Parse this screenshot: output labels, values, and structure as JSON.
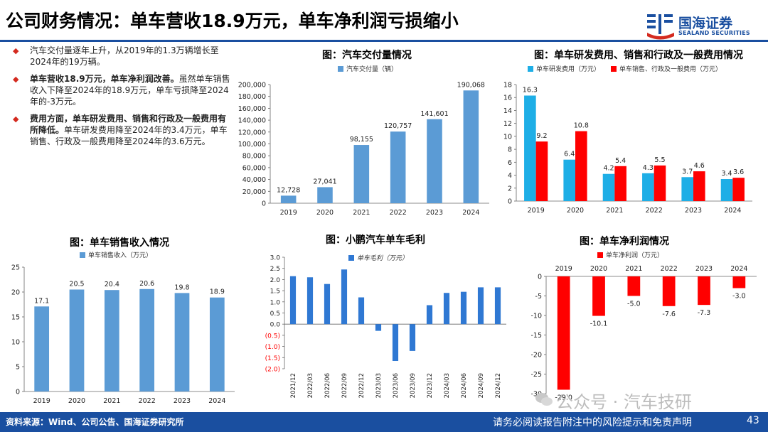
{
  "header": {
    "title": "公司财务情况：单车营收18.9万元，单车净利润亏损缩小",
    "logo_name": "国海证券",
    "logo_en": "SEALAND SECURITIES"
  },
  "bullets": [
    {
      "bold": "",
      "text": "汽车交付量逐年上升，从2019年的1.3万辆增长至2024年的19万辆。"
    },
    {
      "bold": "单车营收18.9万元，单车净利润改善。",
      "text": "虽然单车销售收入下降至2024年的18.9万元，单车亏损降至2024年的-3万元。"
    },
    {
      "bold": "费用方面，单车研发费用、销售和行政及一般费用有所降低。",
      "text": "单车研发费用降至2024年的3.4万元，单车销售、行政及一般费用降至2024年的3.6万元。"
    }
  ],
  "footer": {
    "source": "资料来源：Wind、公司公告、国海证券研究所",
    "disclaimer": "请务必阅读报告附注中的风险提示和免责声明",
    "page": "43"
  },
  "watermark": "公众号 · 汽车技研",
  "colors": {
    "brand": "#1a4fa0",
    "bar_blue": "#5b9bd5",
    "bar_cyan": "#1eaee6",
    "bar_red": "#ff0000",
    "bullet": "#d42a1f"
  },
  "chart_data": [
    {
      "id": "deliveries",
      "type": "bar",
      "title": "图：汽车交付量情况",
      "categories": [
        "2019",
        "2020",
        "2021",
        "2022",
        "2023",
        "2024"
      ],
      "series": [
        {
          "name": "汽车交付量（辆）",
          "values": [
            12728,
            27041,
            98155,
            120757,
            141601,
            190068
          ],
          "labels": [
            "12,728",
            "27,041",
            "98,155",
            "120,757",
            "141,601",
            "190,068"
          ]
        }
      ],
      "ylim": [
        0,
        200000
      ],
      "yticks": [
        0,
        20000,
        40000,
        60000,
        80000,
        100000,
        120000,
        140000,
        160000,
        180000,
        200000
      ],
      "ytick_labels": [
        "0",
        "20,000",
        "40,000",
        "60,000",
        "80,000",
        "100,000",
        "120,000",
        "140,000",
        "160,000",
        "180,000",
        "200,000"
      ],
      "legend": "top"
    },
    {
      "id": "expenses",
      "type": "bar",
      "title": "图：单车研发费用、销售和行政及一般费用情况",
      "categories": [
        "2019",
        "2020",
        "2021",
        "2022",
        "2023",
        "2024"
      ],
      "series": [
        {
          "name": "单车研发费用（万元）",
          "values": [
            16.3,
            6.4,
            4.2,
            4.3,
            3.7,
            3.4
          ],
          "labels": [
            "16.3",
            "6.4",
            "4.2",
            "4.3",
            "3.7",
            "3.4"
          ]
        },
        {
          "name": "单车销售、行政及一般费用（万元）",
          "values": [
            9.2,
            10.8,
            5.4,
            5.5,
            4.6,
            3.6
          ],
          "labels": [
            "9.2",
            "10.8",
            "5.4",
            "5.5",
            "4.6",
            "3.6"
          ]
        }
      ],
      "ylim": [
        0,
        18
      ],
      "yticks": [
        0,
        2,
        4,
        6,
        8,
        10,
        12,
        14,
        16,
        18
      ],
      "ytick_labels": [
        "0",
        "2",
        "4",
        "6",
        "8",
        "10",
        "12",
        "14",
        "16",
        "18"
      ],
      "legend": "top"
    },
    {
      "id": "revenue",
      "type": "bar",
      "title": "图：单车销售收入情况",
      "categories": [
        "2019",
        "2020",
        "2021",
        "2022",
        "2023",
        "2024"
      ],
      "series": [
        {
          "name": "单车销售收入（万元）",
          "values": [
            17.1,
            20.5,
            20.4,
            20.6,
            19.8,
            18.9
          ],
          "labels": [
            "17.1",
            "20.5",
            "20.4",
            "20.6",
            "19.8",
            "18.9"
          ]
        }
      ],
      "ylim": [
        0,
        25
      ],
      "yticks": [
        0,
        5,
        10,
        15,
        20,
        25
      ],
      "ytick_labels": [
        "0",
        "5",
        "10",
        "15",
        "20",
        "25"
      ],
      "legend": "top"
    },
    {
      "id": "margin",
      "type": "bar",
      "title": "图：小鹏汽车单车毛利",
      "categories": [
        "2021/12",
        "2022/03",
        "2022/06",
        "2022/09",
        "2022/12",
        "2023/03",
        "2023/06",
        "2023/09",
        "2023/12",
        "2024/03",
        "2024/06",
        "2024/09",
        "2024/12"
      ],
      "series": [
        {
          "name": "单车毛利（万元）",
          "values": [
            2.15,
            2.1,
            1.8,
            2.45,
            1.2,
            -0.3,
            -1.65,
            -1.2,
            0.85,
            1.4,
            1.45,
            1.65,
            1.65
          ]
        }
      ],
      "ylim": [
        -2.0,
        3.0
      ],
      "yticks": [
        -2.0,
        -1.5,
        -1.0,
        -0.5,
        0,
        0.5,
        1.0,
        1.5,
        2.0,
        2.5,
        3.0
      ],
      "ytick_labels": [
        "(2.0)",
        "(1.5)",
        "(1.0)",
        "(0.5)",
        "0.0",
        "0.5",
        "1.0",
        "1.5",
        "2.0",
        "2.5",
        "3.0"
      ],
      "legend": "top"
    },
    {
      "id": "netprofit",
      "type": "bar",
      "title": "图：单车净利润情况",
      "categories": [
        "2019",
        "2020",
        "2021",
        "2022",
        "2023",
        "2024"
      ],
      "series": [
        {
          "name": "单车净利润（万元）",
          "values": [
            -29.0,
            -10.1,
            -5.0,
            -7.6,
            -7.3,
            -3.0
          ],
          "labels": [
            "-29.0",
            "-10.1",
            "-5.0",
            "-7.6",
            "-7.3",
            "-3.0"
          ]
        }
      ],
      "ylim": [
        -30,
        0
      ],
      "yticks": [
        -30,
        -25,
        -20,
        -15,
        -10,
        -5,
        0
      ],
      "ytick_labels": [
        "-30",
        "-25",
        "-20",
        "-15",
        "-10",
        "-5",
        "0"
      ],
      "legend": "top"
    }
  ]
}
